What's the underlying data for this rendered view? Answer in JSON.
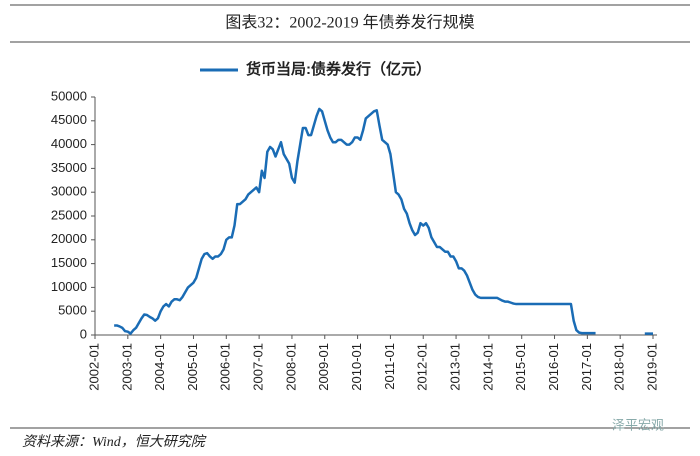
{
  "chart_data": {
    "type": "line",
    "title": "图表32：2002-2019 年债券发行规模",
    "source": "资料来源：Wind，恒大研究院",
    "watermark": "泽平宏观",
    "categories": [
      "2002-01",
      null,
      null,
      null,
      null,
      null,
      null,
      null,
      null,
      null,
      null,
      null,
      "2003-01",
      null,
      null,
      null,
      null,
      null,
      null,
      null,
      null,
      null,
      null,
      null,
      "2004-01",
      null,
      null,
      null,
      null,
      null,
      null,
      null,
      null,
      null,
      null,
      null,
      "2005-01",
      null,
      null,
      null,
      null,
      null,
      null,
      null,
      null,
      null,
      null,
      null,
      "2006-01",
      null,
      null,
      null,
      null,
      null,
      null,
      null,
      null,
      null,
      null,
      null,
      "2007-01",
      null,
      null,
      null,
      null,
      null,
      null,
      null,
      null,
      null,
      null,
      null,
      "2008-01",
      null,
      null,
      null,
      null,
      null,
      null,
      null,
      null,
      null,
      null,
      null,
      "2009-01",
      null,
      null,
      null,
      null,
      null,
      null,
      null,
      null,
      null,
      null,
      null,
      "2010-01",
      null,
      null,
      null,
      null,
      null,
      null,
      null,
      null,
      null,
      null,
      null,
      "2011-01",
      null,
      null,
      null,
      null,
      null,
      null,
      null,
      null,
      null,
      null,
      null,
      "2012-01",
      null,
      null,
      null,
      null,
      null,
      null,
      null,
      null,
      null,
      null,
      null,
      "2013-01",
      null,
      null,
      null,
      null,
      null,
      null,
      null,
      null,
      null,
      null,
      null,
      "2014-01",
      null,
      null,
      null,
      null,
      null,
      null,
      null,
      null,
      null,
      null,
      null,
      "2015-01",
      null,
      null,
      null,
      null,
      null,
      null,
      null,
      null,
      null,
      null,
      null,
      "2016-01",
      null,
      null,
      null,
      null,
      null,
      null,
      null,
      null,
      null,
      null,
      null,
      "2017-01",
      null,
      null,
      null,
      null,
      null,
      null,
      null,
      null,
      null,
      null,
      null,
      "2018-01",
      null,
      null,
      null,
      null,
      null,
      null,
      null,
      null,
      null,
      null,
      null,
      "2019-01"
    ],
    "series": [
      {
        "name": "货币当局:债券发行（亿元）",
        "color": "#1a6cb5",
        "values": [
          null,
          null,
          null,
          null,
          null,
          null,
          null,
          2000,
          2000,
          1800,
          1500,
          800,
          700,
          300,
          1000,
          1500,
          2500,
          3500,
          4300,
          4200,
          3800,
          3500,
          3000,
          3500,
          5000,
          6000,
          6500,
          6000,
          7000,
          7500,
          7500,
          7300,
          8000,
          9000,
          10000,
          10500,
          11000,
          12000,
          14000,
          16000,
          17000,
          17200,
          16500,
          16000,
          16500,
          16500,
          17000,
          18000,
          20000,
          20500,
          20500,
          23000,
          27500,
          27500,
          28000,
          28500,
          29500,
          30000,
          30500,
          31000,
          30000,
          34500,
          33000,
          38500,
          39500,
          39000,
          37500,
          39000,
          40500,
          38000,
          37000,
          36000,
          33000,
          32000,
          36500,
          40000,
          43500,
          43500,
          42000,
          42000,
          44000,
          46000,
          47500,
          47000,
          45000,
          43000,
          41500,
          40500,
          40500,
          41000,
          41000,
          40500,
          40000,
          40000,
          40500,
          41500,
          41500,
          41000,
          43000,
          45500,
          46000,
          46500,
          47000,
          47200,
          44000,
          41000,
          40500,
          40000,
          38000,
          34000,
          30000,
          29500,
          28500,
          26500,
          25500,
          23500,
          22000,
          21000,
          21500,
          23500,
          23000,
          23500,
          22500,
          20500,
          19500,
          18500,
          18500,
          18000,
          17500,
          17500,
          16500,
          16500,
          15500,
          14000,
          14000,
          13500,
          12500,
          11000,
          9500,
          8500,
          8000,
          7800,
          7800,
          7800,
          7800,
          7800,
          7800,
          7800,
          7500,
          7200,
          7000,
          7000,
          6800,
          6600,
          6500,
          6500,
          6500,
          6500,
          6500,
          6500,
          6500,
          6500,
          6500,
          6500,
          6500,
          6500,
          6500,
          6500,
          6500,
          6500,
          6500,
          6500,
          6500,
          6500,
          6500,
          3000,
          1000,
          500,
          400,
          400,
          400,
          400,
          400,
          400,
          null,
          null,
          null,
          null,
          null,
          null,
          null,
          null,
          null,
          null,
          null,
          null,
          null,
          null,
          null,
          null,
          null,
          300,
          300,
          300,
          300
        ]
      }
    ],
    "ylim": [
      0,
      50000
    ],
    "yticks": [
      0,
      5000,
      10000,
      15000,
      20000,
      25000,
      30000,
      35000,
      40000,
      45000,
      50000
    ],
    "legend": "top",
    "grid": false
  }
}
